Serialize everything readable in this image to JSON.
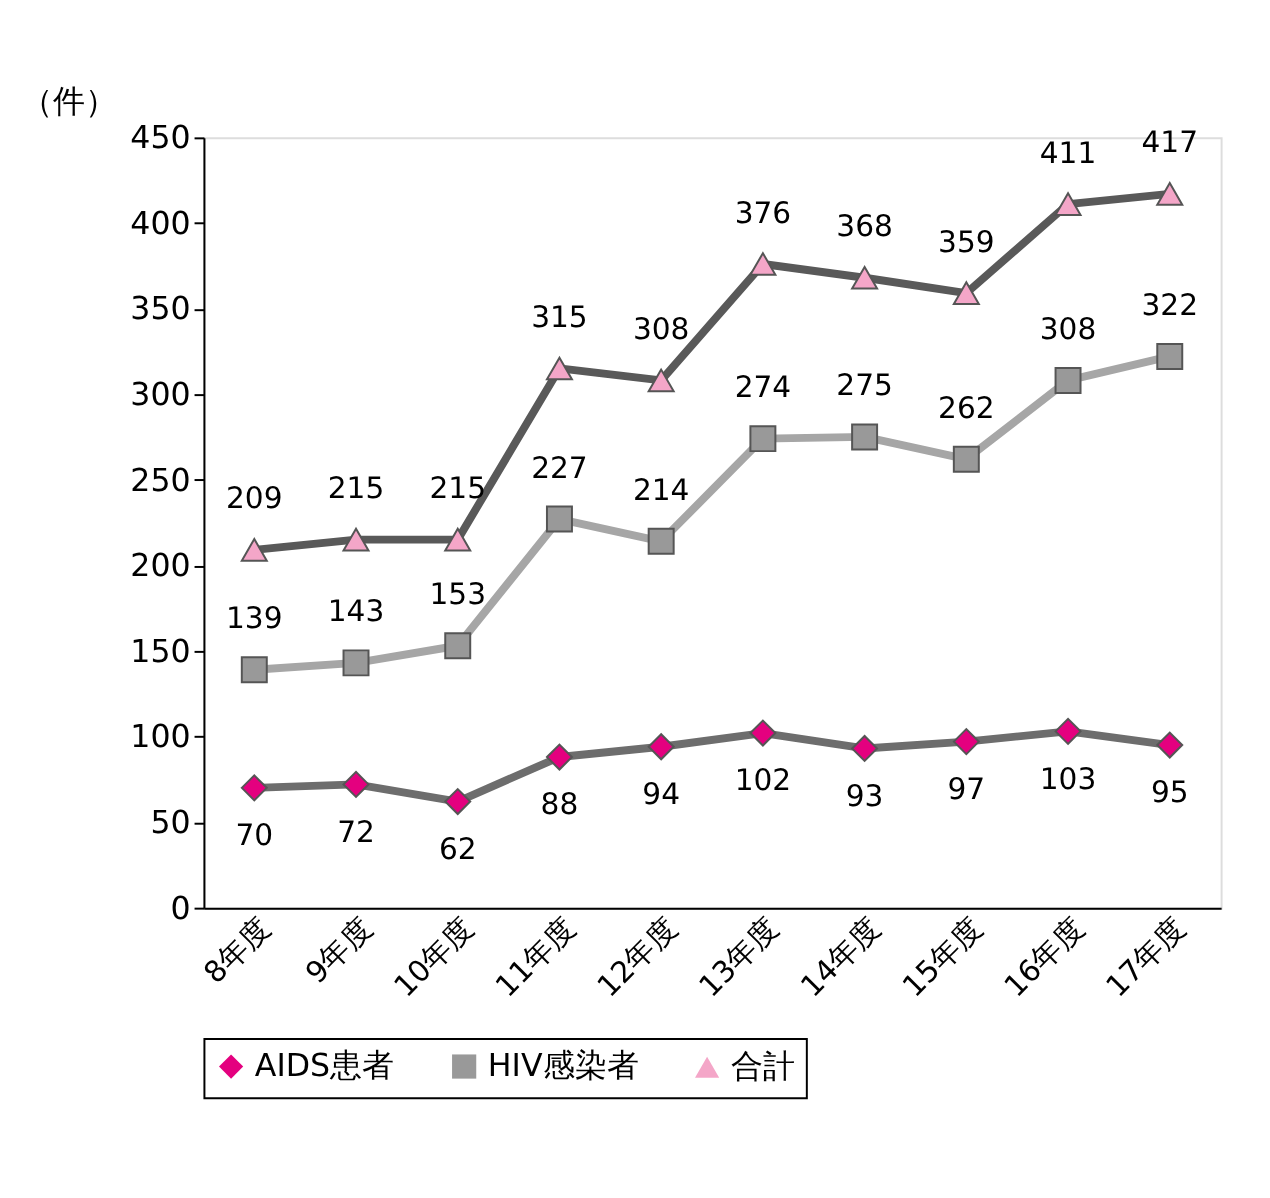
{
  "chart_data": {
    "type": "line",
    "ylabel": "（件）",
    "categories": [
      "8年度",
      "9年度",
      "10年度",
      "11年度",
      "12年度",
      "13年度",
      "14年度",
      "15年度",
      "16年度",
      "17年度"
    ],
    "series": [
      {
        "name": "AIDS患者",
        "color": "#6d6d6d",
        "marker": "diamond",
        "colors": [
          "#e4007f",
          "#e4007f",
          "#e4007f",
          "#e4007f",
          "#e4007f",
          "#e4007f",
          "#e4007f",
          "#e4007f",
          "#e4007f",
          "#e4007f"
        ],
        "values": [
          70,
          72,
          62,
          88,
          94,
          102,
          93,
          97,
          103,
          95
        ]
      },
      {
        "name": "HIV感染者",
        "color": "#a6a6a6",
        "marker": "square",
        "colors": [
          "#999999",
          "#999999",
          "#999999",
          "#999999",
          "#999999",
          "#999999",
          "#999999",
          "#999999",
          "#999999",
          "#999999"
        ],
        "values": [
          139,
          143,
          153,
          227,
          214,
          274,
          275,
          262,
          308,
          322
        ]
      },
      {
        "name": "合計",
        "color": "#595959",
        "marker": "triangle",
        "colors": [
          "#f4a6c8",
          "#f4a6c8",
          "#f4a6c8",
          "#f4a6c8",
          "#f4a6c8",
          "#f4a6c8",
          "#f4a6c8",
          "#f4a6c8",
          "#f4a6c8",
          "#f4a6c8"
        ],
        "values": [
          209,
          215,
          215,
          315,
          308,
          376,
          368,
          359,
          411,
          417
        ]
      }
    ],
    "ylim": [
      0,
      450
    ],
    "yticks": [
      0,
      50,
      100,
      150,
      200,
      250,
      300,
      350,
      400,
      450
    ],
    "grid": false,
    "legend": "bottom",
    "data_labels": true
  }
}
